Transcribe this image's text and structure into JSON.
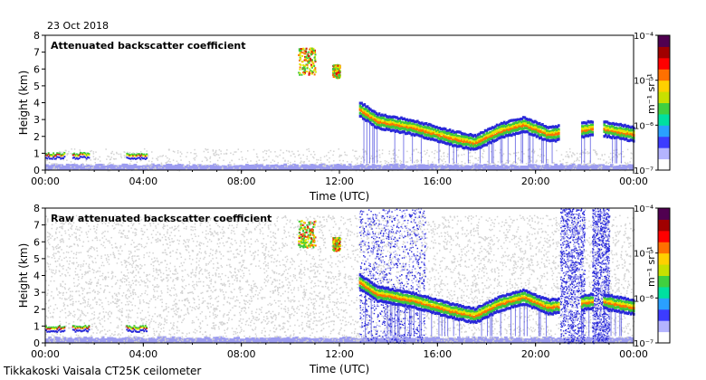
{
  "date_label": "23 Oct 2018",
  "footer_label": "Tikkakoski Vaisala CT25K ceilometer",
  "colorbar": {
    "unit_label": "m⁻¹ sr⁻¹",
    "tick_labels": [
      "10⁻⁷",
      "10⁻⁶",
      "10⁻⁵",
      "10⁻⁴"
    ],
    "colors": [
      "#ffffff",
      "#b4b4ff",
      "#3c3cff",
      "#2aa0ff",
      "#00e0a0",
      "#40d040",
      "#c8e000",
      "#ffd000",
      "#ff7000",
      "#ff0000",
      "#a00000",
      "#500050"
    ]
  },
  "colors": {
    "noise_gray": "#d3d3d3",
    "weak_blue": "#9c9cf0",
    "mid_blue": "#2828d8",
    "green": "#3cc83c",
    "yellow": "#e6e600",
    "red": "#e01010"
  },
  "chart_data": [
    {
      "type": "heatmap",
      "title": "Attenuated backscatter coefficient",
      "xlabel": "Time (UTC)",
      "ylabel": "Height (km)",
      "xlim": [
        0,
        24
      ],
      "ylim": [
        0,
        8
      ],
      "x_tick_labels": [
        "00:00",
        "04:00",
        "08:00",
        "12:00",
        "16:00",
        "20:00",
        "00:00"
      ],
      "y_tick_labels": [
        "0",
        "1",
        "2",
        "3",
        "4",
        "5",
        "6",
        "7",
        "8"
      ],
      "cloud_base_km": [
        {
          "t": 0.0,
          "h": 0.9
        },
        {
          "t": 4.0,
          "h": 0.85
        },
        {
          "t": 12.8,
          "h": 3.5
        },
        {
          "t": 13.5,
          "h": 2.8
        },
        {
          "t": 15.0,
          "h": 2.4
        },
        {
          "t": 16.5,
          "h": 1.8
        },
        {
          "t": 17.5,
          "h": 1.5
        },
        {
          "t": 18.5,
          "h": 2.2
        },
        {
          "t": 19.5,
          "h": 2.6
        },
        {
          "t": 20.5,
          "h": 2.0
        },
        {
          "t": 21.5,
          "h": 2.2
        },
        {
          "t": 22.5,
          "h": 2.4
        },
        {
          "t": 24.0,
          "h": 2.0
        }
      ],
      "high_cloud_segments": [
        {
          "t_start": 10.3,
          "t_end": 11.0,
          "h_low": 5.7,
          "h_high": 7.3
        },
        {
          "t_start": 11.7,
          "t_end": 12.0,
          "h_low": 5.5,
          "h_high": 6.3
        }
      ]
    },
    {
      "type": "heatmap",
      "title": "Raw attenuated backscatter coefficient",
      "xlabel": "Time (UTC)",
      "ylabel": "Height (km)",
      "xlim": [
        0,
        24
      ],
      "ylim": [
        0,
        8
      ],
      "x_tick_labels": [
        "00:00",
        "04:00",
        "08:00",
        "12:00",
        "16:00",
        "20:00",
        "00:00"
      ],
      "y_tick_labels": [
        "0",
        "1",
        "2",
        "3",
        "4",
        "5",
        "6",
        "7",
        "8"
      ],
      "noise_bands_utc": [
        [
          12.8,
          15.5
        ],
        [
          21.0,
          22.0
        ],
        [
          22.3,
          23.0
        ]
      ],
      "high_cloud_segments": [
        {
          "t_start": 10.3,
          "t_end": 11.0,
          "h_low": 5.7,
          "h_high": 7.3
        },
        {
          "t_start": 11.7,
          "t_end": 12.0,
          "h_low": 5.5,
          "h_high": 6.3
        }
      ]
    }
  ]
}
